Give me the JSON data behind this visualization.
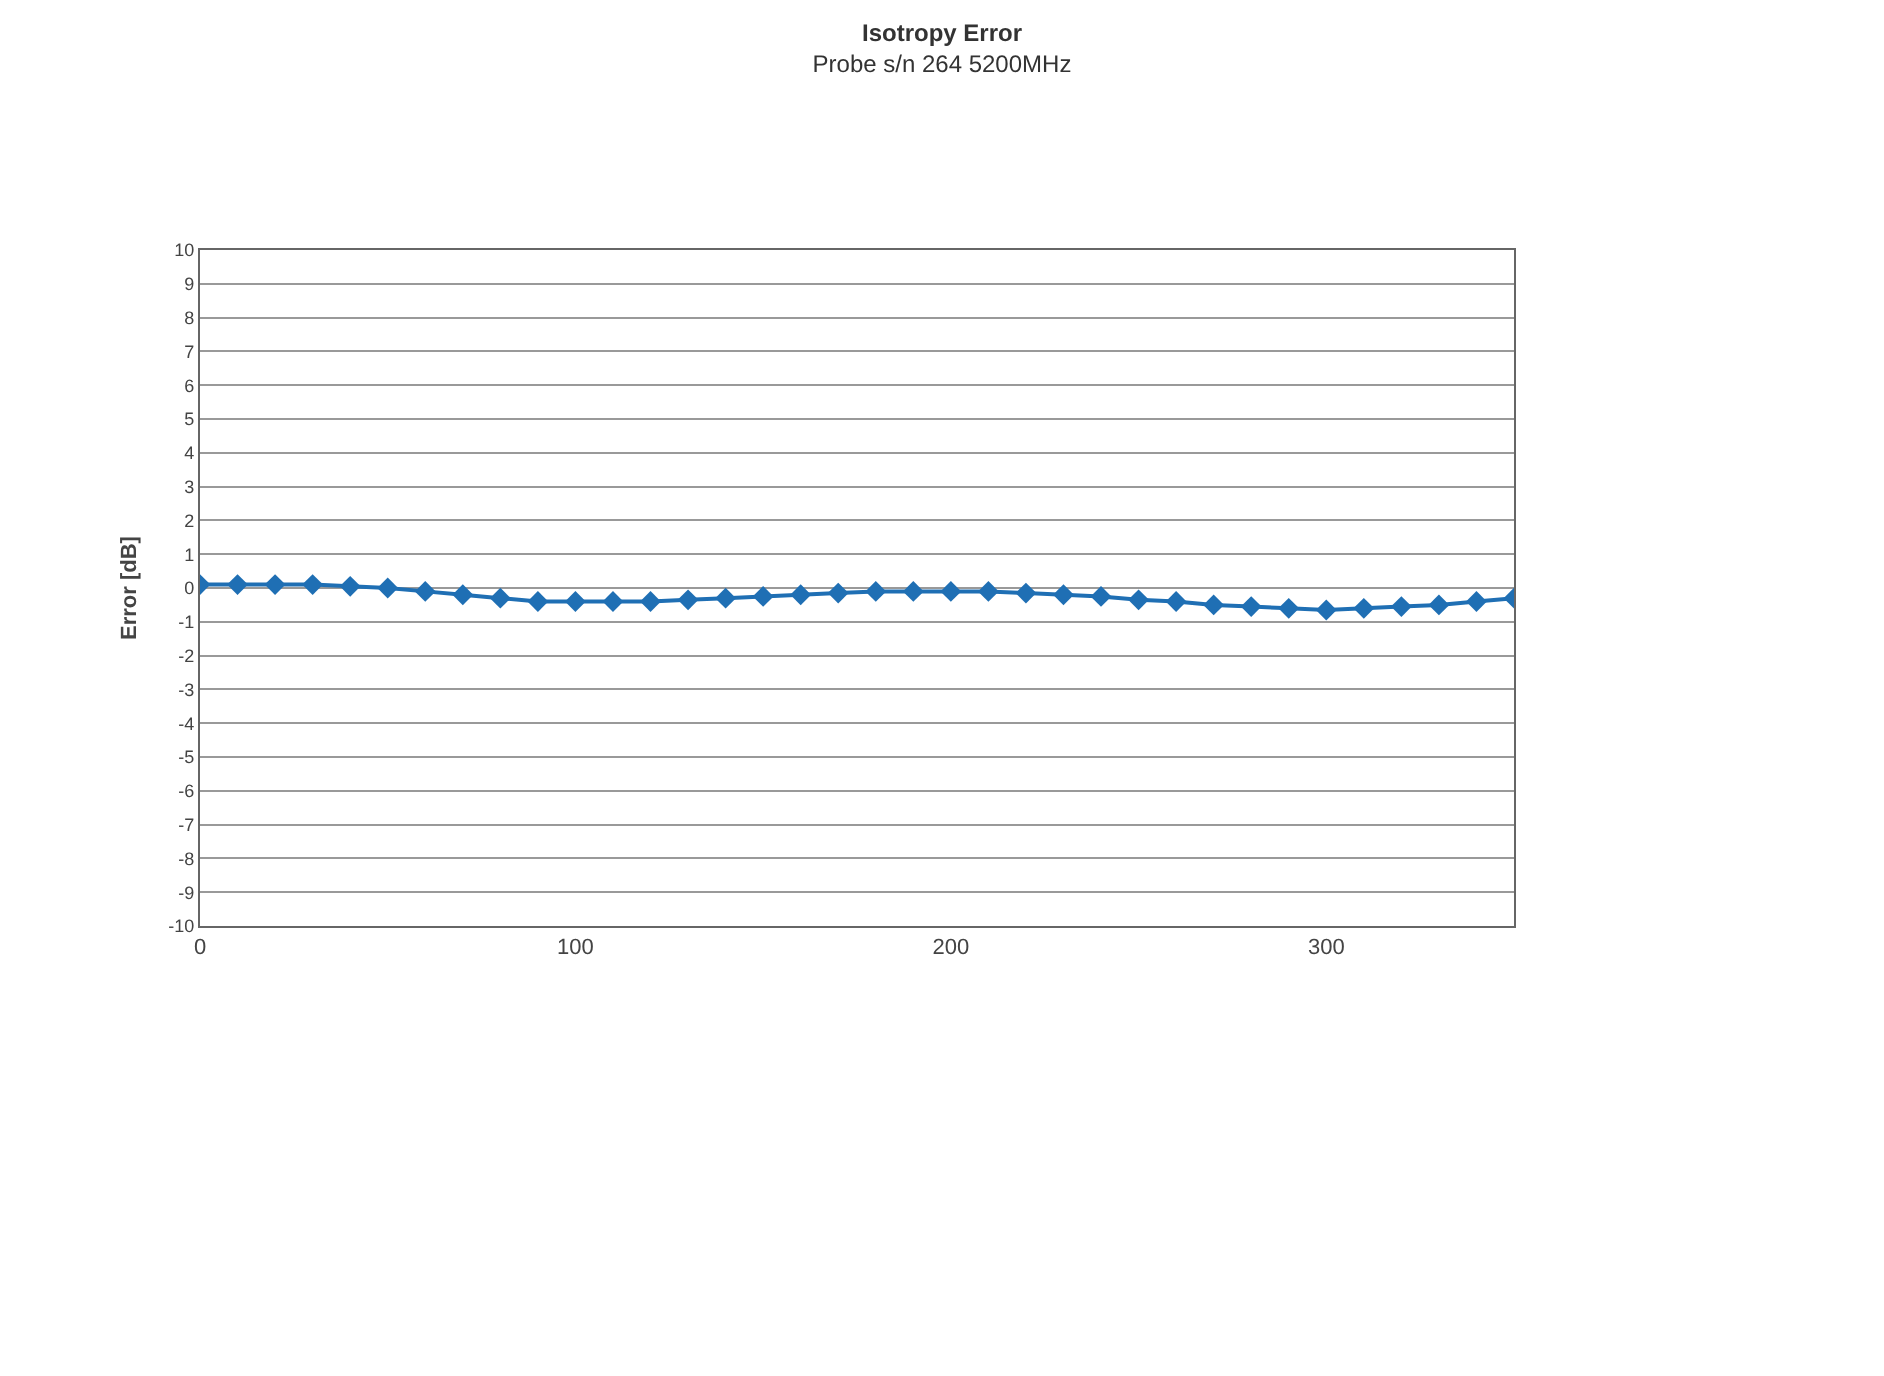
{
  "chart_data": {
    "type": "line",
    "title": "Isotropy Error",
    "subtitle": "Probe s/n 264 5200MHz",
    "ylabel": "Error [dB]",
    "x": [
      0,
      10,
      20,
      30,
      40,
      50,
      60,
      70,
      80,
      90,
      100,
      110,
      120,
      130,
      140,
      150,
      160,
      170,
      180,
      190,
      200,
      210,
      220,
      230,
      240,
      250,
      260,
      270,
      280,
      290,
      300,
      310,
      320,
      330,
      340,
      350
    ],
    "series": [
      {
        "color": "#1f6fb4",
        "values": [
          0.1,
          0.1,
          0.1,
          0.1,
          0.05,
          0,
          -0.1,
          -0.2,
          -0.3,
          -0.4,
          -0.4,
          -0.4,
          -0.4,
          -0.35,
          -0.3,
          -0.25,
          -0.2,
          -0.15,
          -0.1,
          -0.1,
          -0.1,
          -0.1,
          -0.15,
          -0.2,
          -0.25,
          -0.35,
          -0.4,
          -0.5,
          -0.55,
          -0.6,
          -0.65,
          -0.6,
          -0.55,
          -0.5,
          -0.4,
          -0.3
        ]
      }
    ],
    "xlim": [
      0,
      350
    ],
    "xticks": [
      0,
      100,
      200,
      300
    ],
    "ylim": [
      -10,
      10
    ],
    "yticks": [
      -10,
      -9,
      -8,
      -7,
      -6,
      -5,
      -4,
      -3,
      -2,
      -1,
      0,
      1,
      2,
      3,
      4,
      5,
      6,
      7,
      8,
      9,
      10
    ],
    "grid": "y",
    "marker": "diamond",
    "line_style": "solid"
  }
}
